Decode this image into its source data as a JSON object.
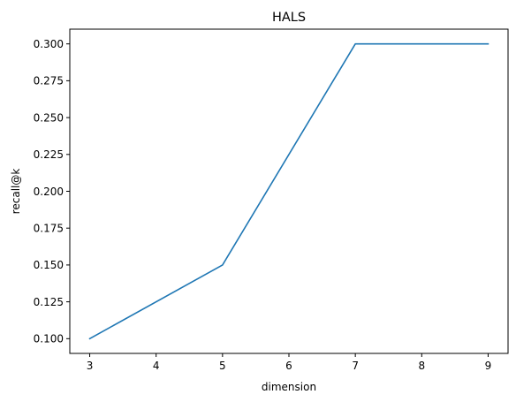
{
  "chart_data": {
    "type": "line",
    "title": "HALS",
    "xlabel": "dimension",
    "ylabel": "recall@k",
    "x": [
      3,
      5,
      7,
      9
    ],
    "series": [
      {
        "values": [
          0.1,
          0.15,
          0.3,
          0.3
        ]
      }
    ],
    "xlim": [
      2.7,
      9.3
    ],
    "ylim": [
      0.09,
      0.31
    ],
    "xticks": [
      "3",
      "4",
      "5",
      "6",
      "7",
      "8",
      "9"
    ],
    "xtick_values": [
      3,
      4,
      5,
      6,
      7,
      8,
      9
    ],
    "yticks": [
      "0.100",
      "0.125",
      "0.150",
      "0.175",
      "0.200",
      "0.225",
      "0.250",
      "0.275",
      "0.300"
    ],
    "ytick_values": [
      0.1,
      0.125,
      0.15,
      0.175,
      0.2,
      0.225,
      0.25,
      0.275,
      0.3
    ],
    "grid": false,
    "colors": {
      "line": "#1f77b4",
      "axes": "#000000"
    }
  }
}
